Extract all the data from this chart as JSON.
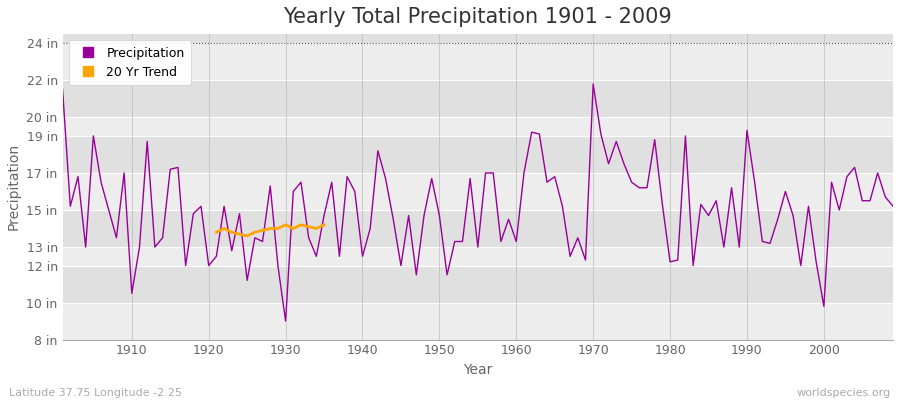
{
  "title": "Yearly Total Precipitation 1901 - 2009",
  "xlabel": "Year",
  "ylabel": "Precipitation",
  "subtitle_left": "Latitude 37.75 Longitude -2.25",
  "subtitle_right": "worldspecies.org",
  "years": [
    1901,
    1902,
    1903,
    1904,
    1905,
    1906,
    1907,
    1908,
    1909,
    1910,
    1911,
    1912,
    1913,
    1914,
    1915,
    1916,
    1917,
    1918,
    1919,
    1920,
    1921,
    1922,
    1923,
    1924,
    1925,
    1926,
    1927,
    1928,
    1929,
    1930,
    1931,
    1932,
    1933,
    1934,
    1935,
    1936,
    1937,
    1938,
    1939,
    1940,
    1941,
    1942,
    1943,
    1944,
    1945,
    1946,
    1947,
    1948,
    1949,
    1950,
    1951,
    1952,
    1953,
    1954,
    1955,
    1956,
    1957,
    1958,
    1959,
    1960,
    1961,
    1962,
    1963,
    1964,
    1965,
    1966,
    1967,
    1968,
    1969,
    1970,
    1971,
    1972,
    1973,
    1974,
    1975,
    1976,
    1977,
    1978,
    1979,
    1980,
    1981,
    1982,
    1983,
    1984,
    1985,
    1986,
    1987,
    1988,
    1989,
    1990,
    1991,
    1992,
    1993,
    1994,
    1995,
    1996,
    1997,
    1998,
    1999,
    2000,
    2001,
    2002,
    2003,
    2004,
    2005,
    2006,
    2007,
    2008,
    2009
  ],
  "precip_in": [
    21.5,
    15.2,
    16.8,
    13.0,
    19.0,
    16.5,
    15.0,
    13.5,
    17.0,
    10.5,
    13.0,
    18.7,
    13.0,
    13.5,
    17.2,
    17.3,
    12.0,
    14.8,
    15.2,
    12.0,
    12.5,
    15.2,
    12.8,
    14.8,
    11.2,
    13.5,
    13.3,
    16.3,
    12.0,
    9.0,
    16.0,
    16.5,
    13.5,
    12.5,
    14.7,
    16.5,
    12.5,
    16.8,
    16.0,
    12.5,
    14.0,
    18.2,
    16.7,
    14.5,
    12.0,
    14.7,
    11.5,
    14.7,
    16.7,
    14.7,
    11.5,
    13.3,
    13.3,
    16.7,
    13.0,
    17.0,
    17.0,
    13.3,
    14.5,
    13.3,
    17.0,
    19.2,
    19.1,
    16.5,
    16.8,
    15.2,
    12.5,
    13.5,
    12.3,
    21.8,
    19.1,
    17.5,
    18.7,
    17.5,
    16.5,
    16.2,
    16.2,
    18.8,
    15.3,
    12.2,
    12.3,
    19.0,
    12.0,
    15.3,
    14.7,
    15.5,
    13.0,
    16.2,
    13.0,
    19.3,
    16.5,
    13.3,
    13.2,
    14.5,
    16.0,
    14.7,
    12.0,
    15.2,
    12.2,
    9.8,
    16.5,
    15.0,
    16.8,
    17.3,
    15.5,
    15.5,
    17.0,
    15.7,
    15.2
  ],
  "trend_years": [
    1921,
    1922,
    1923,
    1924,
    1925,
    1926,
    1927,
    1928,
    1929,
    1930,
    1931,
    1932,
    1933,
    1934,
    1935
  ],
  "trend_values": [
    13.8,
    14.0,
    13.8,
    13.7,
    13.6,
    13.8,
    13.9,
    14.0,
    14.0,
    14.2,
    14.0,
    14.2,
    14.1,
    14.0,
    14.2
  ],
  "precip_color": "#990099",
  "trend_color": "#FFA500",
  "bg_color": "#ffffff",
  "plot_bg_color": "#E0E0E0",
  "stripe_color": "#CCCCCC",
  "ylim_min": 8,
  "ylim_max": 24.5,
  "yticks": [
    8,
    10,
    12,
    13,
    15,
    17,
    19,
    20,
    22,
    24
  ],
  "ytick_labels": [
    "8 in",
    "10 in",
    "12 in",
    "13 in",
    "15 in",
    "17 in",
    "19 in",
    "20 in",
    "22 in",
    "24 in"
  ],
  "xlim_min": 1901,
  "xlim_max": 2009,
  "xticks": [
    1910,
    1920,
    1930,
    1940,
    1950,
    1960,
    1970,
    1980,
    1990,
    2000
  ],
  "title_fontsize": 15,
  "axis_label_fontsize": 10,
  "tick_fontsize": 9,
  "legend_fontsize": 9
}
